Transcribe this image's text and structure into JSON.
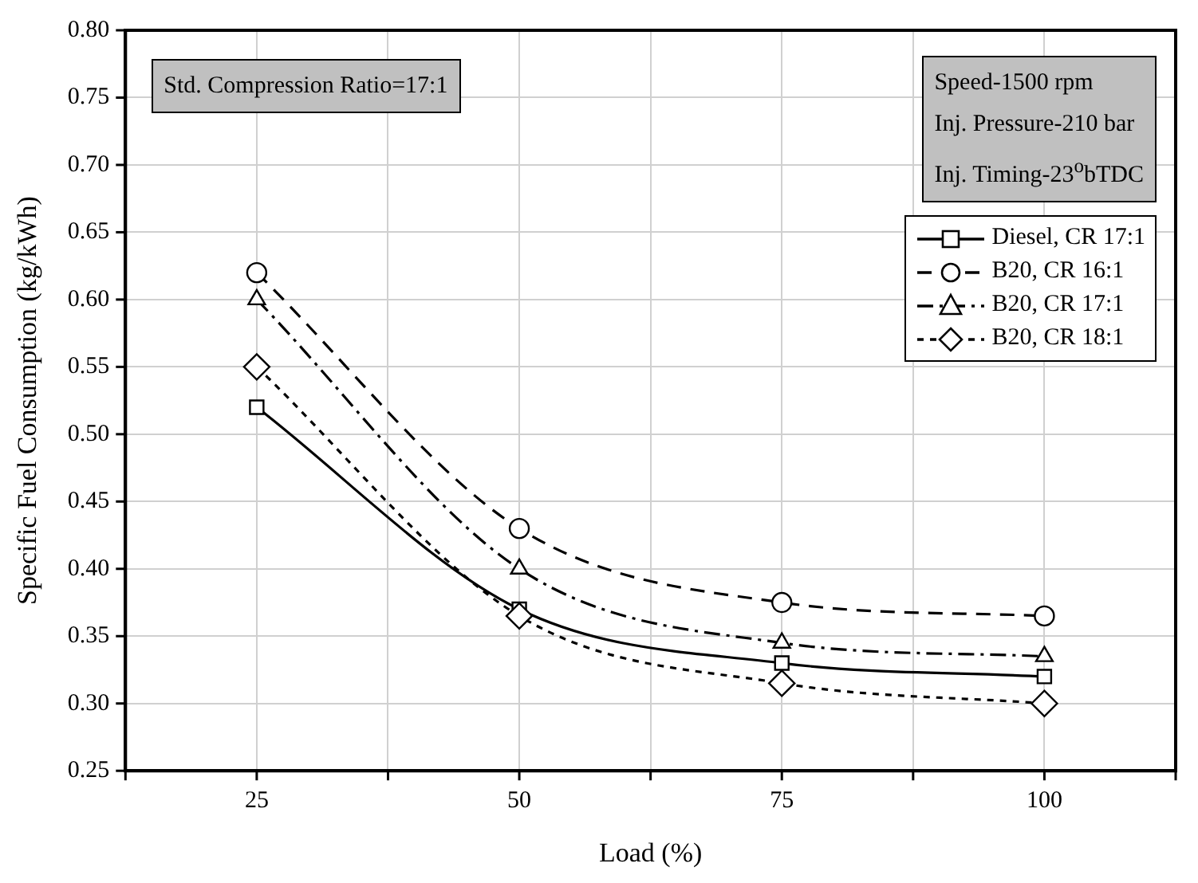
{
  "chart_data": {
    "type": "line",
    "xlabel": "Load (%)",
    "ylabel": "Specific Fuel Consumption (kg/kWh)",
    "x": [
      25,
      50,
      75,
      100
    ],
    "xlim": [
      12.5,
      112.5
    ],
    "xticks": [
      {
        "value": 12.5,
        "label": null
      },
      25,
      {
        "value": 37.5,
        "label": null
      },
      50,
      {
        "value": 62.5,
        "label": null
      },
      75,
      {
        "value": 87.5,
        "label": null
      },
      100,
      {
        "value": 112.5,
        "label": null
      }
    ],
    "ylim": [
      0.25,
      0.8
    ],
    "yticks": [
      {
        "value": 0.25,
        "label": "0.25"
      },
      {
        "value": 0.3,
        "label": "0.30"
      },
      {
        "value": 0.35,
        "label": "0.35"
      },
      {
        "value": 0.4,
        "label": "0.40"
      },
      {
        "value": 0.45,
        "label": "0.45"
      },
      {
        "value": 0.5,
        "label": "0.50"
      },
      {
        "value": 0.55,
        "label": "0.55"
      },
      {
        "value": 0.6,
        "label": "0.60"
      },
      {
        "value": 0.65,
        "label": "0.65"
      },
      {
        "value": 0.7,
        "label": "0.70"
      },
      {
        "value": 0.75,
        "label": "0.75"
      },
      {
        "value": 0.8,
        "label": "0.80"
      }
    ],
    "series": [
      {
        "name": "Diesel, CR 17:1",
        "color": "#000000",
        "values": [
          0.52,
          0.37,
          0.33,
          0.32
        ],
        "marker": "square",
        "line_style": "solid"
      },
      {
        "name": "B20, CR 16:1",
        "color": "#000000",
        "values": [
          0.62,
          0.43,
          0.375,
          0.365
        ],
        "marker": "circle",
        "line_style": "dashed"
      },
      {
        "name": "B20, CR 17:1",
        "color": "#000000",
        "values": [
          0.6,
          0.4,
          0.345,
          0.335
        ],
        "marker": "triangle",
        "line_style": "dashdot"
      },
      {
        "name": "B20, CR 18:1",
        "color": "#000000",
        "values": [
          0.55,
          0.365,
          0.315,
          0.3
        ],
        "marker": "diamond",
        "line_style": "dotted"
      }
    ],
    "annotations": [
      "Std. Compression Ratio=17:1",
      "Speed-1500 rpm\nInj. Pressure-210 bar\nInj. Timing-23$^{o}$bTDC"
    ],
    "grid": true,
    "legend": "top right"
  }
}
